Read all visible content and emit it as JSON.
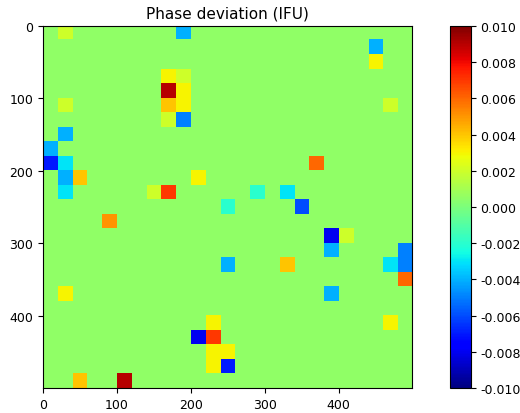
{
  "chart_data": {
    "type": "heatmap",
    "title": "Phase deviation (IFU)",
    "color": "jet",
    "xlim": [
      0,
      500
    ],
    "ylim": [
      500,
      0
    ],
    "xticks": [
      0,
      100,
      200,
      300,
      400
    ],
    "yticks": [
      0,
      100,
      200,
      300,
      400
    ],
    "color_range": [
      -0.01,
      0.01
    ],
    "color_ticks": [
      {
        "value": -0.01,
        "label": "-0.010"
      },
      {
        "value": -0.008,
        "label": "-0.008"
      },
      {
        "value": -0.006,
        "label": "-0.006"
      },
      {
        "value": -0.004,
        "label": "-0.004"
      },
      {
        "value": -0.002,
        "label": "-0.002"
      },
      {
        "value": 0,
        "label": "0.000"
      },
      {
        "value": 0.002,
        "label": "0.002"
      },
      {
        "value": 0.004,
        "label": "0.004"
      },
      {
        "value": 0.006,
        "label": "0.006"
      },
      {
        "value": 0.008,
        "label": "0.008"
      },
      {
        "value": 0.01,
        "label": "0.010"
      }
    ],
    "cells": [
      [
        0.0005,
        0.002,
        0.0005,
        0.0005,
        0.0005,
        0.0005,
        0.0005,
        0.0005,
        0.0005,
        -0.004,
        0.0005,
        0.0005,
        0.0005,
        0.0005,
        0.0005,
        0.0005,
        0.0005,
        0.0005,
        0.0005,
        0.0005,
        0.0005,
        0.0005,
        0.0005,
        0.0005,
        0.0005
      ],
      [
        0.0005,
        0.0005,
        0.0005,
        0.0005,
        0.0005,
        0.0005,
        0.0005,
        0.0005,
        0.0005,
        0.0005,
        0.0005,
        0.0005,
        0.0005,
        0.0005,
        0.0005,
        0.0005,
        0.0005,
        0.0005,
        0.0005,
        0.0005,
        0.0005,
        0.0005,
        -0.004,
        0.0005,
        0.0005
      ],
      [
        0.0005,
        0.0005,
        0.0005,
        0.0005,
        0.0005,
        0.0005,
        0.0005,
        0.0005,
        0.0005,
        0.0005,
        0.0005,
        0.0005,
        0.0005,
        0.0005,
        0.0005,
        0.0005,
        0.0005,
        0.0005,
        0.0005,
        0.0005,
        0.0005,
        0.0005,
        0.003,
        0.0005,
        0.0005
      ],
      [
        0.0005,
        0.0005,
        0.0005,
        0.0005,
        0.0005,
        0.0005,
        0.0005,
        0.0005,
        0.003,
        0.002,
        0.0005,
        0.0005,
        0.0005,
        0.0005,
        0.0005,
        0.0005,
        0.0005,
        0.0005,
        0.0005,
        0.0005,
        0.0005,
        0.0005,
        0.0005,
        0.0005,
        0.0005
      ],
      [
        0.0005,
        0.0005,
        0.0005,
        0.0005,
        0.0005,
        0.0005,
        0.0005,
        0.0005,
        0.009,
        0.003,
        0.0005,
        0.0005,
        0.0005,
        0.0005,
        0.0005,
        0.0005,
        0.0005,
        0.0005,
        0.0005,
        0.0005,
        0.0005,
        0.0005,
        0.0005,
        0.0005,
        0.0005
      ],
      [
        0.0005,
        0.002,
        0.0005,
        0.0005,
        0.0005,
        0.0005,
        0.0005,
        0.0005,
        0.004,
        0.003,
        0.0005,
        0.0005,
        0.0005,
        0.0005,
        0.0005,
        0.0005,
        0.0005,
        0.0005,
        0.0005,
        0.0005,
        0.0005,
        0.0005,
        0.0005,
        0.002,
        0.0005
      ],
      [
        0.0005,
        0.0005,
        0.0005,
        0.0005,
        0.0005,
        0.0005,
        0.0005,
        0.0005,
        0.002,
        -0.005,
        0.0005,
        0.0005,
        0.0005,
        0.0005,
        0.0005,
        0.0005,
        0.0005,
        0.0005,
        0.0005,
        0.0005,
        0.0005,
        0.0005,
        0.0005,
        0.0005,
        0.0005
      ],
      [
        0.0005,
        -0.004,
        0.0005,
        0.0005,
        0.0005,
        0.0005,
        0.0005,
        0.0005,
        0.0005,
        0.0005,
        0.0005,
        0.0005,
        0.0005,
        0.0005,
        0.0005,
        0.0005,
        0.0005,
        0.0005,
        0.0005,
        0.0005,
        0.0005,
        0.0005,
        0.0005,
        0.0005,
        0.0005
      ],
      [
        -0.004,
        0.0005,
        0.0005,
        0.0005,
        0.0005,
        0.0005,
        0.0005,
        0.0005,
        0.0005,
        0.0005,
        0.0005,
        0.0005,
        0.0005,
        0.0005,
        0.0005,
        0.0005,
        0.0005,
        0.0005,
        0.0005,
        0.0005,
        0.0005,
        0.0005,
        0.0005,
        0.0005,
        0.0005
      ],
      [
        -0.007,
        -0.003,
        0.0005,
        0.0005,
        0.0005,
        0.0005,
        0.0005,
        0.0005,
        0.0005,
        0.0005,
        0.0005,
        0.0005,
        0.0005,
        0.0005,
        0.0005,
        0.0005,
        0.0005,
        0.0005,
        0.006,
        0.0005,
        0.0005,
        0.0005,
        0.0005,
        0.0005,
        0.0005
      ],
      [
        0.0005,
        -0.004,
        0.004,
        0.0005,
        0.0005,
        0.0005,
        0.0005,
        0.0005,
        0.0005,
        0.0005,
        0.003,
        0.0005,
        0.0005,
        0.0005,
        0.0005,
        0.0005,
        0.0005,
        0.0005,
        0.0005,
        0.0005,
        0.0005,
        0.0005,
        0.0005,
        0.0005,
        0.0005
      ],
      [
        0.0005,
        -0.003,
        0.0005,
        0.0005,
        0.0005,
        0.0005,
        0.0005,
        0.002,
        0.007,
        0.0005,
        0.0005,
        0.0005,
        0.0005,
        0.0005,
        -0.002,
        0.0005,
        -0.003,
        0.0005,
        0.0005,
        0.0005,
        0.0005,
        0.0005,
        0.0005,
        0.0005,
        0.0005
      ],
      [
        0.0005,
        0.0005,
        0.0005,
        0.0005,
        0.0005,
        0.0005,
        0.0005,
        0.0005,
        0.0005,
        0.0005,
        0.0005,
        0.0005,
        -0.002,
        0.0005,
        0.0005,
        0.0005,
        0.0005,
        -0.006,
        0.0005,
        0.0005,
        0.0005,
        0.0005,
        0.0005,
        0.0005,
        0.0005
      ],
      [
        0.0005,
        0.0005,
        0.0005,
        0.0005,
        0.005,
        0.0005,
        0.0005,
        0.0005,
        0.0005,
        0.0005,
        0.0005,
        0.0005,
        0.0005,
        0.0005,
        0.0005,
        0.0005,
        0.0005,
        0.0005,
        0.0005,
        0.0005,
        0.0005,
        0.0005,
        0.0005,
        0.0005,
        0.0005
      ],
      [
        0.0005,
        0.0005,
        0.0005,
        0.0005,
        0.0005,
        0.0005,
        0.0005,
        0.0005,
        0.0005,
        0.0005,
        0.0005,
        0.0005,
        0.0005,
        0.0005,
        0.0005,
        0.0005,
        0.0005,
        0.0005,
        0.0005,
        -0.008,
        0.002,
        0.0005,
        0.0005,
        0.0005,
        0.0005
      ],
      [
        0.0005,
        0.0005,
        0.0005,
        0.0005,
        0.0005,
        0.0005,
        0.0005,
        0.0005,
        0.0005,
        0.0005,
        0.0005,
        0.0005,
        0.0005,
        0.0005,
        0.0005,
        0.0005,
        0.0005,
        0.0005,
        0.0005,
        -0.004,
        0.0005,
        0.0005,
        0.0005,
        0.0005,
        -0.005
      ],
      [
        0.0005,
        0.0005,
        0.0005,
        0.0005,
        0.0005,
        0.0005,
        0.0005,
        0.0005,
        0.0005,
        0.0005,
        0.0005,
        0.0005,
        -0.004,
        0.0005,
        0.0005,
        0.0005,
        0.004,
        0.0005,
        0.0005,
        0.0005,
        0.0005,
        0.0005,
        0.0005,
        -0.003,
        -0.005
      ],
      [
        0.0005,
        0.0005,
        0.0005,
        0.0005,
        0.0005,
        0.0005,
        0.0005,
        0.0005,
        0.0005,
        0.0005,
        0.0005,
        0.0005,
        0.0005,
        0.0005,
        0.0005,
        0.0005,
        0.0005,
        0.0005,
        0.0005,
        0.0005,
        0.0005,
        0.0005,
        0.0005,
        0.0005,
        0.006
      ],
      [
        0.0005,
        0.003,
        0.0005,
        0.0005,
        0.0005,
        0.0005,
        0.0005,
        0.0005,
        0.0005,
        0.0005,
        0.0005,
        0.0005,
        0.0005,
        0.0005,
        0.0005,
        0.0005,
        0.0005,
        0.0005,
        0.0005,
        -0.004,
        0.0005,
        0.0005,
        0.0005,
        0.0005,
        0.0005
      ],
      [
        0.0005,
        0.0005,
        0.0005,
        0.0005,
        0.0005,
        0.0005,
        0.0005,
        0.0005,
        0.0005,
        0.0005,
        0.0005,
        0.0005,
        0.0005,
        0.0005,
        0.0005,
        0.0005,
        0.0005,
        0.0005,
        0.0005,
        0.0005,
        0.0005,
        0.0005,
        0.0005,
        0.0005,
        0.0005
      ],
      [
        0.0005,
        0.0005,
        0.0005,
        0.0005,
        0.0005,
        0.0005,
        0.0005,
        0.0005,
        0.0005,
        0.0005,
        0.0005,
        0.003,
        0.0005,
        0.0005,
        0.0005,
        0.0005,
        0.0005,
        0.0005,
        0.0005,
        0.0005,
        0.0005,
        0.0005,
        0.0005,
        0.003,
        0.0005
      ],
      [
        0.0005,
        0.0005,
        0.0005,
        0.0005,
        0.0005,
        0.0005,
        0.0005,
        0.0005,
        0.0005,
        0.0005,
        -0.008,
        0.007,
        0.0005,
        0.0005,
        0.0005,
        0.0005,
        0.0005,
        0.0005,
        0.0005,
        0.0005,
        0.0005,
        0.0005,
        0.0005,
        0.0005,
        0.0005
      ],
      [
        0.0005,
        0.0005,
        0.0005,
        0.0005,
        0.0005,
        0.0005,
        0.0005,
        0.0005,
        0.0005,
        0.0005,
        0.0005,
        0.003,
        0.003,
        0.0005,
        0.0005,
        0.0005,
        0.0005,
        0.0005,
        0.0005,
        0.0005,
        0.0005,
        0.0005,
        0.0005,
        0.0005,
        0.0005
      ],
      [
        0.0005,
        0.0005,
        0.0005,
        0.0005,
        0.0005,
        0.0005,
        0.0005,
        0.0005,
        0.0005,
        0.0005,
        0.0005,
        0.003,
        -0.007,
        0.0005,
        0.0005,
        0.0005,
        0.0005,
        0.0005,
        0.0005,
        0.0005,
        0.0005,
        0.0005,
        0.0005,
        0.0005,
        0.0005
      ],
      [
        0.0005,
        0.0005,
        0.004,
        0.0005,
        0.0005,
        0.009,
        0.0005,
        0.0005,
        0.0005,
        0.0005,
        0.0005,
        0.0005,
        0.0005,
        0.0005,
        0.0005,
        0.0005,
        0.0005,
        0.0005,
        0.0005,
        0.0005,
        0.0005,
        0.0005,
        0.0005,
        0.0005,
        0.0005
      ]
    ]
  }
}
